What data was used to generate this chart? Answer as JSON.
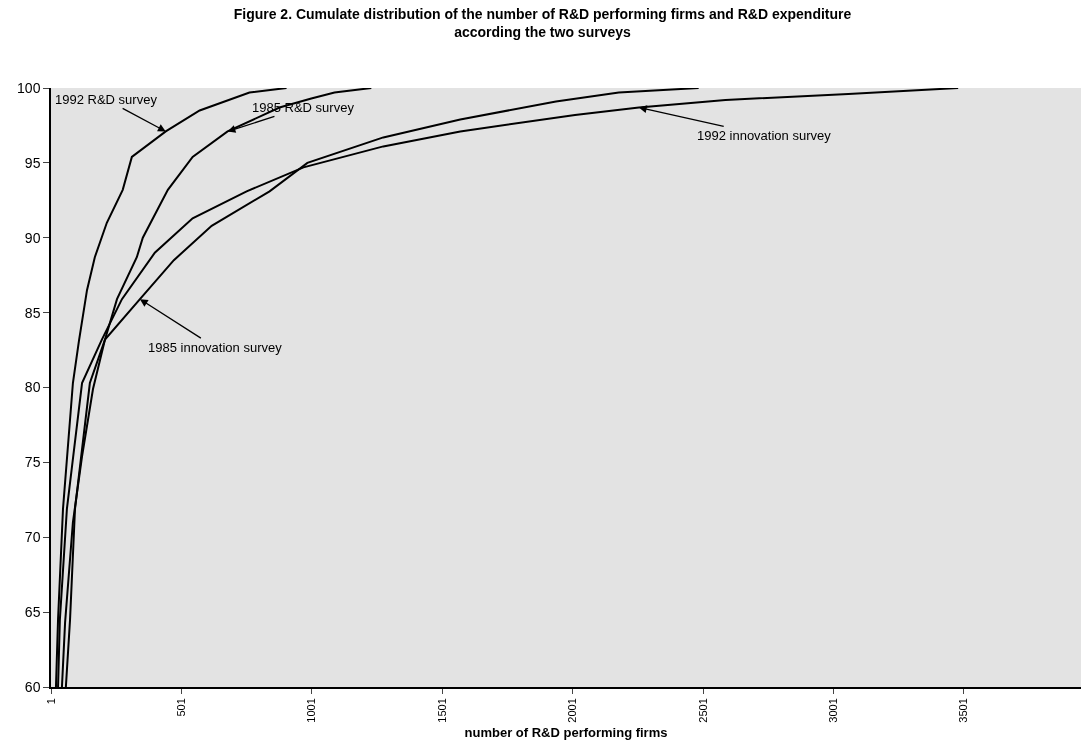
{
  "chart_data": {
    "type": "line",
    "title": "Figure 2. Cumulate distribution of the number of R&D performing firms and R&D expenditure according the two surveys",
    "xlabel": "number of R&D performing firms",
    "xlim": [
      1,
      3950
    ],
    "xticks": [
      1,
      501,
      1001,
      1501,
      2001,
      2501,
      3001,
      3501
    ],
    "ylim": [
      60,
      100
    ],
    "yticks": [
      60,
      65,
      70,
      75,
      80,
      85,
      90,
      95,
      100
    ],
    "grid": false,
    "legend": false,
    "marker": "none",
    "line_style": "solid",
    "series": [
      {
        "name": "1992 R&D survey",
        "color": "#000000",
        "x": [
          20,
          28,
          47,
          85,
          108,
          139,
          169,
          215,
          276,
          311,
          441,
          571,
          762,
          904
        ],
        "values": [
          60,
          64.5,
          71.9,
          80.3,
          83.1,
          86.5,
          88.7,
          91.0,
          93.2,
          95.4,
          97.1,
          98.5,
          99.7,
          100
        ]
      },
      {
        "name": "1985 R&D survey",
        "color": "#000000",
        "x": [
          43,
          55,
          85,
          120,
          162,
          208,
          254,
          330,
          353,
          449,
          544,
          678,
          877,
          999,
          1088,
          1229
        ],
        "values": [
          60,
          64.3,
          71.0,
          75.4,
          79.9,
          83.2,
          85.9,
          88.7,
          90.0,
          93.2,
          95.4,
          97.1,
          98.7,
          99.3,
          99.7,
          100
        ]
      },
      {
        "name": "1992 innovation survey",
        "color": "#000000",
        "x": [
          28,
          35,
          62,
          120,
          196,
          273,
          399,
          544,
          751,
          969,
          1275,
          1570,
          2010,
          2255,
          2587,
          3058,
          3479
        ],
        "values": [
          60,
          64.5,
          71.9,
          80.3,
          83.2,
          85.9,
          89.0,
          91.3,
          93.1,
          94.7,
          96.1,
          97.1,
          98.2,
          98.7,
          99.2,
          99.6,
          100
        ]
      },
      {
        "name": "1985 innovation survey",
        "color": "#000000",
        "x": [
          58,
          74,
          93,
          150,
          208,
          342,
          472,
          617,
          839,
          984,
          1275,
          1570,
          1937,
          2178,
          2484
        ],
        "values": [
          60,
          64.5,
          71.9,
          80.3,
          83.2,
          85.9,
          88.5,
          90.8,
          93.1,
          95.0,
          96.7,
          97.9,
          99.1,
          99.7,
          100
        ]
      }
    ]
  }
}
